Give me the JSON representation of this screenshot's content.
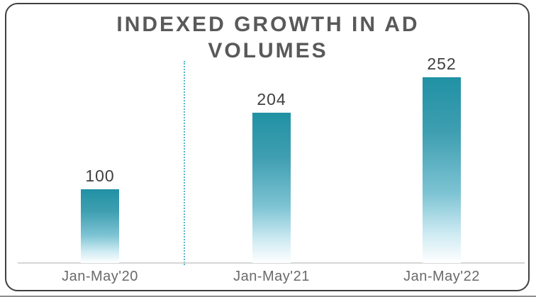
{
  "chart_data": {
    "type": "bar",
    "title": "INDEXED GROWTH IN AD VOLUMES",
    "title_lines": [
      "INDEXED GROWTH IN AD",
      "VOLUMES"
    ],
    "categories": [
      "Jan-May'20",
      "Jan-May'21",
      "Jan-May'22"
    ],
    "values": [
      100,
      204,
      252
    ],
    "value_labels": [
      "100",
      "204",
      "252"
    ],
    "xlabel": "",
    "ylabel": "",
    "ylim": [
      0,
      260
    ],
    "grid": false,
    "legend": false,
    "orientation": "vertical",
    "colors": {
      "bar_gradient_top": "#2191a4",
      "bar_gradient_mid": "#7cc3d3",
      "bar_gradient_bottom": "#ffffff",
      "title_text": "#595959",
      "value_text": "#3f3f3f",
      "category_text": "#6a6a6a",
      "axis_line": "#d6d6d6",
      "divider_dotted": "#55b7c8",
      "frame_border": "#3f3f3f"
    },
    "annotations": {
      "divider_position": "between first and second bar",
      "divider_style": "vertical dotted line"
    }
  }
}
